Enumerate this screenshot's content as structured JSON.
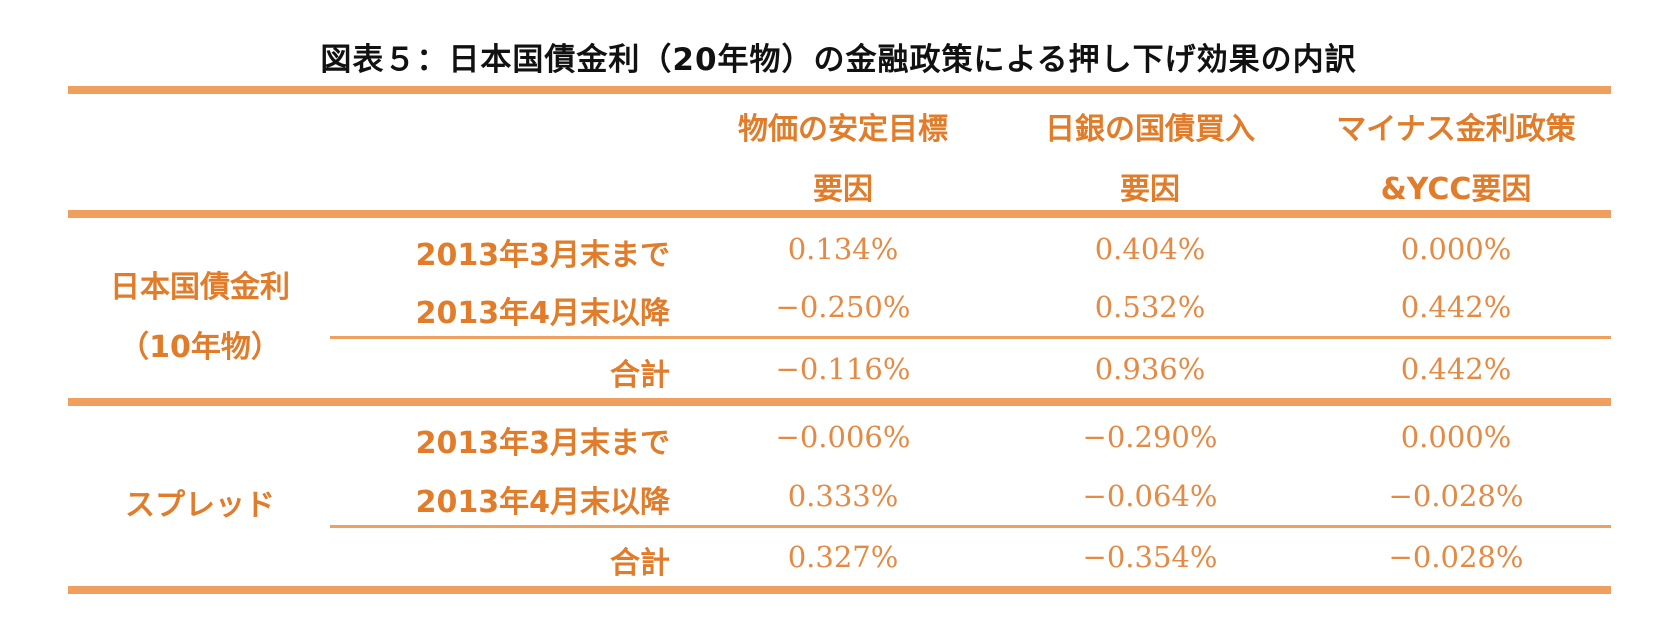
{
  "title": "図表５：日本国債金利（20年物）の金融政策による押し下げ効果の内訳",
  "columns": [
    {
      "line1": "物価の安定目標",
      "line2": "要因"
    },
    {
      "line1": "日銀の国債買入",
      "line2": "要因"
    },
    {
      "line1": "マイナス金利政策",
      "line2": "&YCC要因"
    }
  ],
  "groups": [
    {
      "label_line1": "日本国債金利",
      "label_line2": "（10年物）",
      "rows": [
        {
          "label": "2013年3月末まで",
          "values": [
            "0.134%",
            "0.404%",
            "0.000%"
          ]
        },
        {
          "label": "2013年4月末以降",
          "values": [
            "−0.250%",
            "0.532%",
            "0.442%"
          ]
        },
        {
          "label": "合計",
          "values": [
            "−0.116%",
            "0.936%",
            "0.442%"
          ]
        }
      ]
    },
    {
      "label_line1": "スプレッド",
      "rows": [
        {
          "label": "2013年3月末まで",
          "values": [
            "−0.006%",
            "−0.290%",
            "0.000%"
          ]
        },
        {
          "label": "2013年4月末以降",
          "values": [
            "0.333%",
            "−0.064%",
            "−0.028%"
          ]
        },
        {
          "label": "合計",
          "values": [
            "0.327%",
            "−0.354%",
            "−0.028%"
          ]
        }
      ]
    }
  ],
  "colors": {
    "accent": "#e07c2a",
    "rule": "#f0a05e",
    "title": "#111111"
  }
}
